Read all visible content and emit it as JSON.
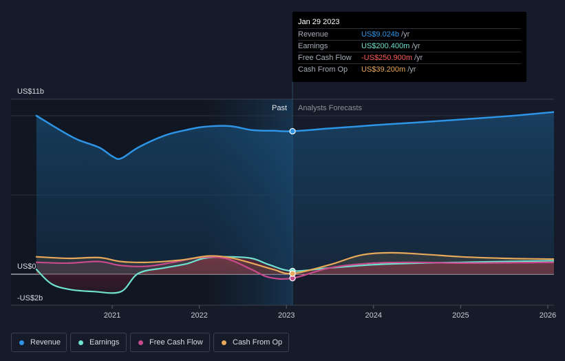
{
  "chart_data": {
    "type": "line",
    "x_ticks": [
      "2021",
      "2022",
      "2023",
      "2024",
      "2025",
      "2026"
    ],
    "y_labels": {
      "top": "US$11b",
      "zero": "US$0",
      "bottom": "-US$2b"
    },
    "ylim": [
      -2,
      11
    ],
    "divider_labels": {
      "past": "Past",
      "forecast": "Analysts Forecasts"
    },
    "series": [
      {
        "name": "Revenue",
        "color": "#2d94e6",
        "x": [
          2020.13,
          2020.4,
          2020.6,
          2020.85,
          2021.0,
          2021.1,
          2021.3,
          2021.6,
          2021.85,
          2022.05,
          2022.35,
          2022.6,
          2022.85,
          2023.07,
          2023.5,
          2024.0,
          2024.5,
          2025.15,
          2025.6,
          2026.1
        ],
        "y": [
          10.0,
          9.1,
          8.5,
          8.0,
          7.45,
          7.3,
          8.0,
          8.75,
          9.1,
          9.3,
          9.35,
          9.1,
          9.05,
          9.024,
          9.2,
          9.4,
          9.58,
          9.82,
          10.0,
          10.25
        ]
      },
      {
        "name": "Earnings",
        "color": "#6fe3cf",
        "x": [
          2020.13,
          2020.3,
          2020.5,
          2020.8,
          2021.1,
          2021.3,
          2021.6,
          2021.85,
          2022.05,
          2022.3,
          2022.6,
          2022.8,
          2023.07,
          2023.5,
          2024.0,
          2024.5,
          2025.0,
          2025.5,
          2026.1
        ],
        "y": [
          0.3,
          -0.6,
          -0.95,
          -1.1,
          -1.1,
          0.05,
          0.4,
          0.65,
          1.0,
          1.1,
          1.0,
          0.6,
          0.2004,
          0.4,
          0.6,
          0.7,
          0.75,
          0.8,
          0.85
        ]
      },
      {
        "name": "Free Cash Flow",
        "color": "#c74b8c",
        "x": [
          2020.13,
          2020.5,
          2020.85,
          2021.1,
          2021.4,
          2021.7,
          2022.0,
          2022.3,
          2022.6,
          2022.8,
          2023.07,
          2023.5,
          2024.0,
          2024.5,
          2025.0,
          2025.5,
          2026.1
        ],
        "y": [
          0.75,
          0.7,
          0.8,
          0.55,
          0.5,
          0.75,
          1.05,
          1.0,
          0.3,
          -0.2,
          -0.2509,
          0.4,
          0.7,
          0.75,
          0.7,
          0.72,
          0.75
        ]
      },
      {
        "name": "Cash From Op",
        "color": "#e8a95a",
        "x": [
          2020.13,
          2020.5,
          2020.85,
          2021.1,
          2021.4,
          2021.8,
          2022.1,
          2022.35,
          2022.6,
          2022.85,
          2023.07,
          2023.5,
          2023.85,
          2024.2,
          2024.6,
          2025.0,
          2025.5,
          2026.1
        ],
        "y": [
          1.1,
          1.0,
          1.05,
          0.8,
          0.75,
          0.9,
          1.15,
          1.05,
          0.7,
          0.3,
          0.0392,
          0.6,
          1.2,
          1.35,
          1.25,
          1.1,
          1.0,
          0.95
        ]
      }
    ],
    "legend": "bottom",
    "grid": true
  },
  "tooltip": {
    "date": "Jan 29 2023",
    "rows": [
      {
        "label": "Revenue",
        "value": "US$9.024b",
        "unit": "/yr",
        "color": "#2d94e6"
      },
      {
        "label": "Earnings",
        "value": "US$200.400m",
        "unit": "/yr",
        "color": "#6fe3cf"
      },
      {
        "label": "Free Cash Flow",
        "value": "-US$250.900m",
        "unit": "/yr",
        "color": "#ff5b5b"
      },
      {
        "label": "Cash From Op",
        "value": "US$39.200m",
        "unit": "/yr",
        "color": "#e8a95a"
      }
    ]
  },
  "legend_items": [
    {
      "label": "Revenue",
      "color": "#2d94e6"
    },
    {
      "label": "Earnings",
      "color": "#6fe3cf"
    },
    {
      "label": "Free Cash Flow",
      "color": "#c74b8c"
    },
    {
      "label": "Cash From Op",
      "color": "#e8a95a"
    }
  ]
}
